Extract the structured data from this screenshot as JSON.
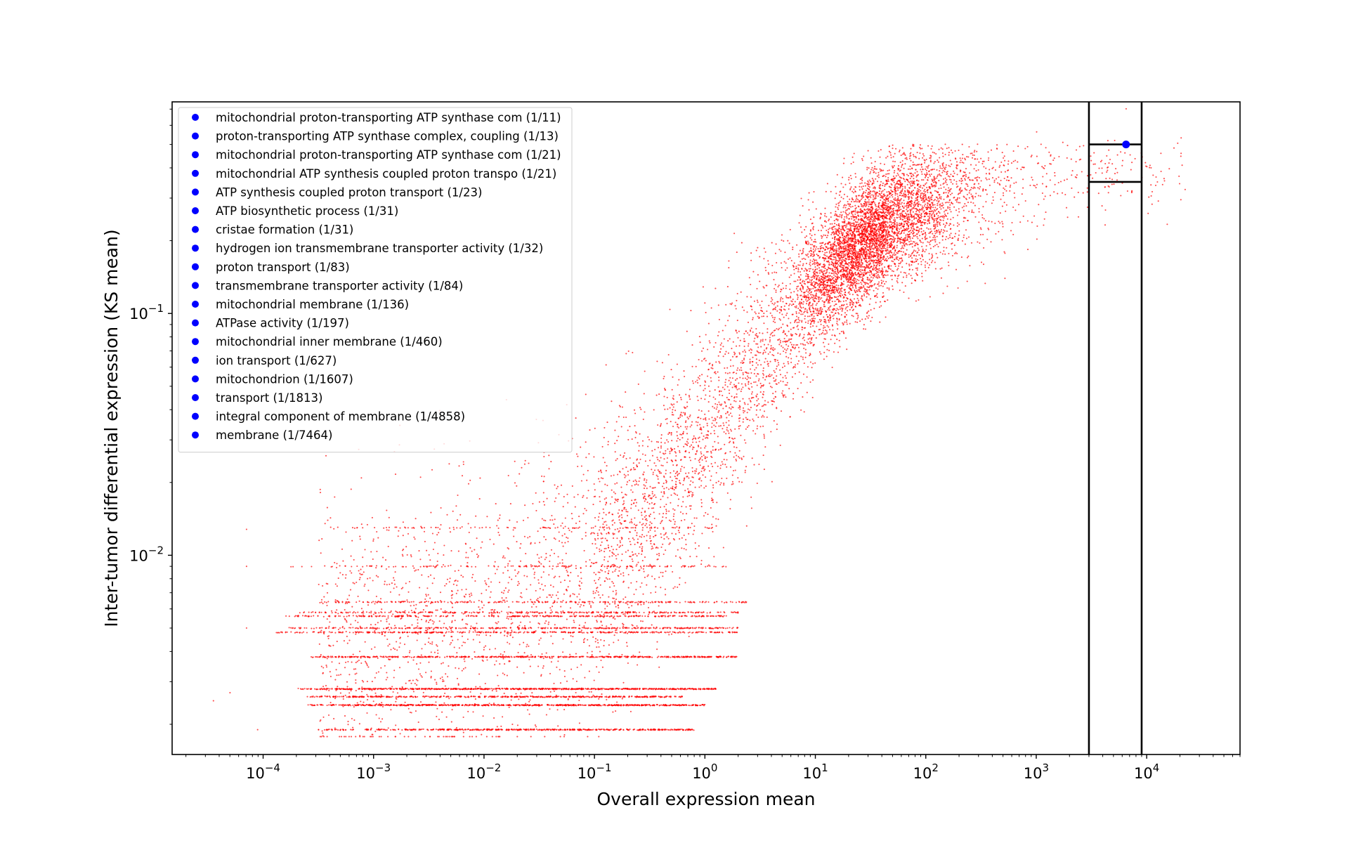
{
  "chart_data": {
    "type": "scatter",
    "title": "",
    "xlabel": "Overall expression mean",
    "ylabel": "Inter-tumor differential expression (KS mean)",
    "xscale": "log",
    "yscale": "log",
    "xlim": [
      1.5e-05,
      70000
    ],
    "ylim": [
      0.0015,
      0.75
    ],
    "xticks": [
      {
        "value": 0.0001,
        "base": "10",
        "exp": "−4"
      },
      {
        "value": 0.001,
        "base": "10",
        "exp": "−3"
      },
      {
        "value": 0.01,
        "base": "10",
        "exp": "−2"
      },
      {
        "value": 0.1,
        "base": "10",
        "exp": "−1"
      },
      {
        "value": 1,
        "base": "10",
        "exp": "0"
      },
      {
        "value": 10,
        "base": "10",
        "exp": "1"
      },
      {
        "value": 100,
        "base": "10",
        "exp": "2"
      },
      {
        "value": 1000,
        "base": "10",
        "exp": "3"
      },
      {
        "value": 10000,
        "base": "10",
        "exp": "4"
      }
    ],
    "yticks": [
      {
        "value": 0.01,
        "base": "10",
        "exp": "−2"
      },
      {
        "value": 0.1,
        "base": "10",
        "exp": "−1"
      }
    ],
    "grid": false,
    "legend_position": "upper-left",
    "background_series": {
      "name": "",
      "color": "#ff0000",
      "marker": "small dot",
      "approx_point_count": 18000,
      "trend": "increasing: KS mean rises from ~0.002-0.01 at expression 1e-4..1e-1 to ~0.2-0.5 at expression 10..1e4"
    },
    "highlight_point": {
      "x": 6500,
      "y": 0.5,
      "color": "#0000ff"
    },
    "selection_box": {
      "x_range": [
        3000,
        9000
      ],
      "y_range": [
        0.35,
        0.5
      ]
    },
    "legend": [
      "mitochondrial proton-transporting ATP synthase com (1/11)",
      "proton-transporting ATP synthase complex, coupling (1/13)",
      "mitochondrial proton-transporting ATP synthase com (1/21)",
      "mitochondrial ATP synthesis coupled proton transpo (1/21)",
      "ATP synthesis coupled proton transport (1/23)",
      "ATP biosynthetic process (1/31)",
      "cristae formation (1/31)",
      "hydrogen ion transmembrane transporter activity (1/32)",
      "proton transport (1/83)",
      "transmembrane transporter activity (1/84)",
      "mitochondrial membrane (1/136)",
      "ATPase activity (1/197)",
      "mitochondrial inner membrane (1/460)",
      "ion transport (1/627)",
      "mitochondrion (1/1607)",
      "transport (1/1813)",
      "integral component of membrane (1/4858)",
      "membrane (1/7464)"
    ],
    "legend_marker_color": "#0000ff"
  }
}
